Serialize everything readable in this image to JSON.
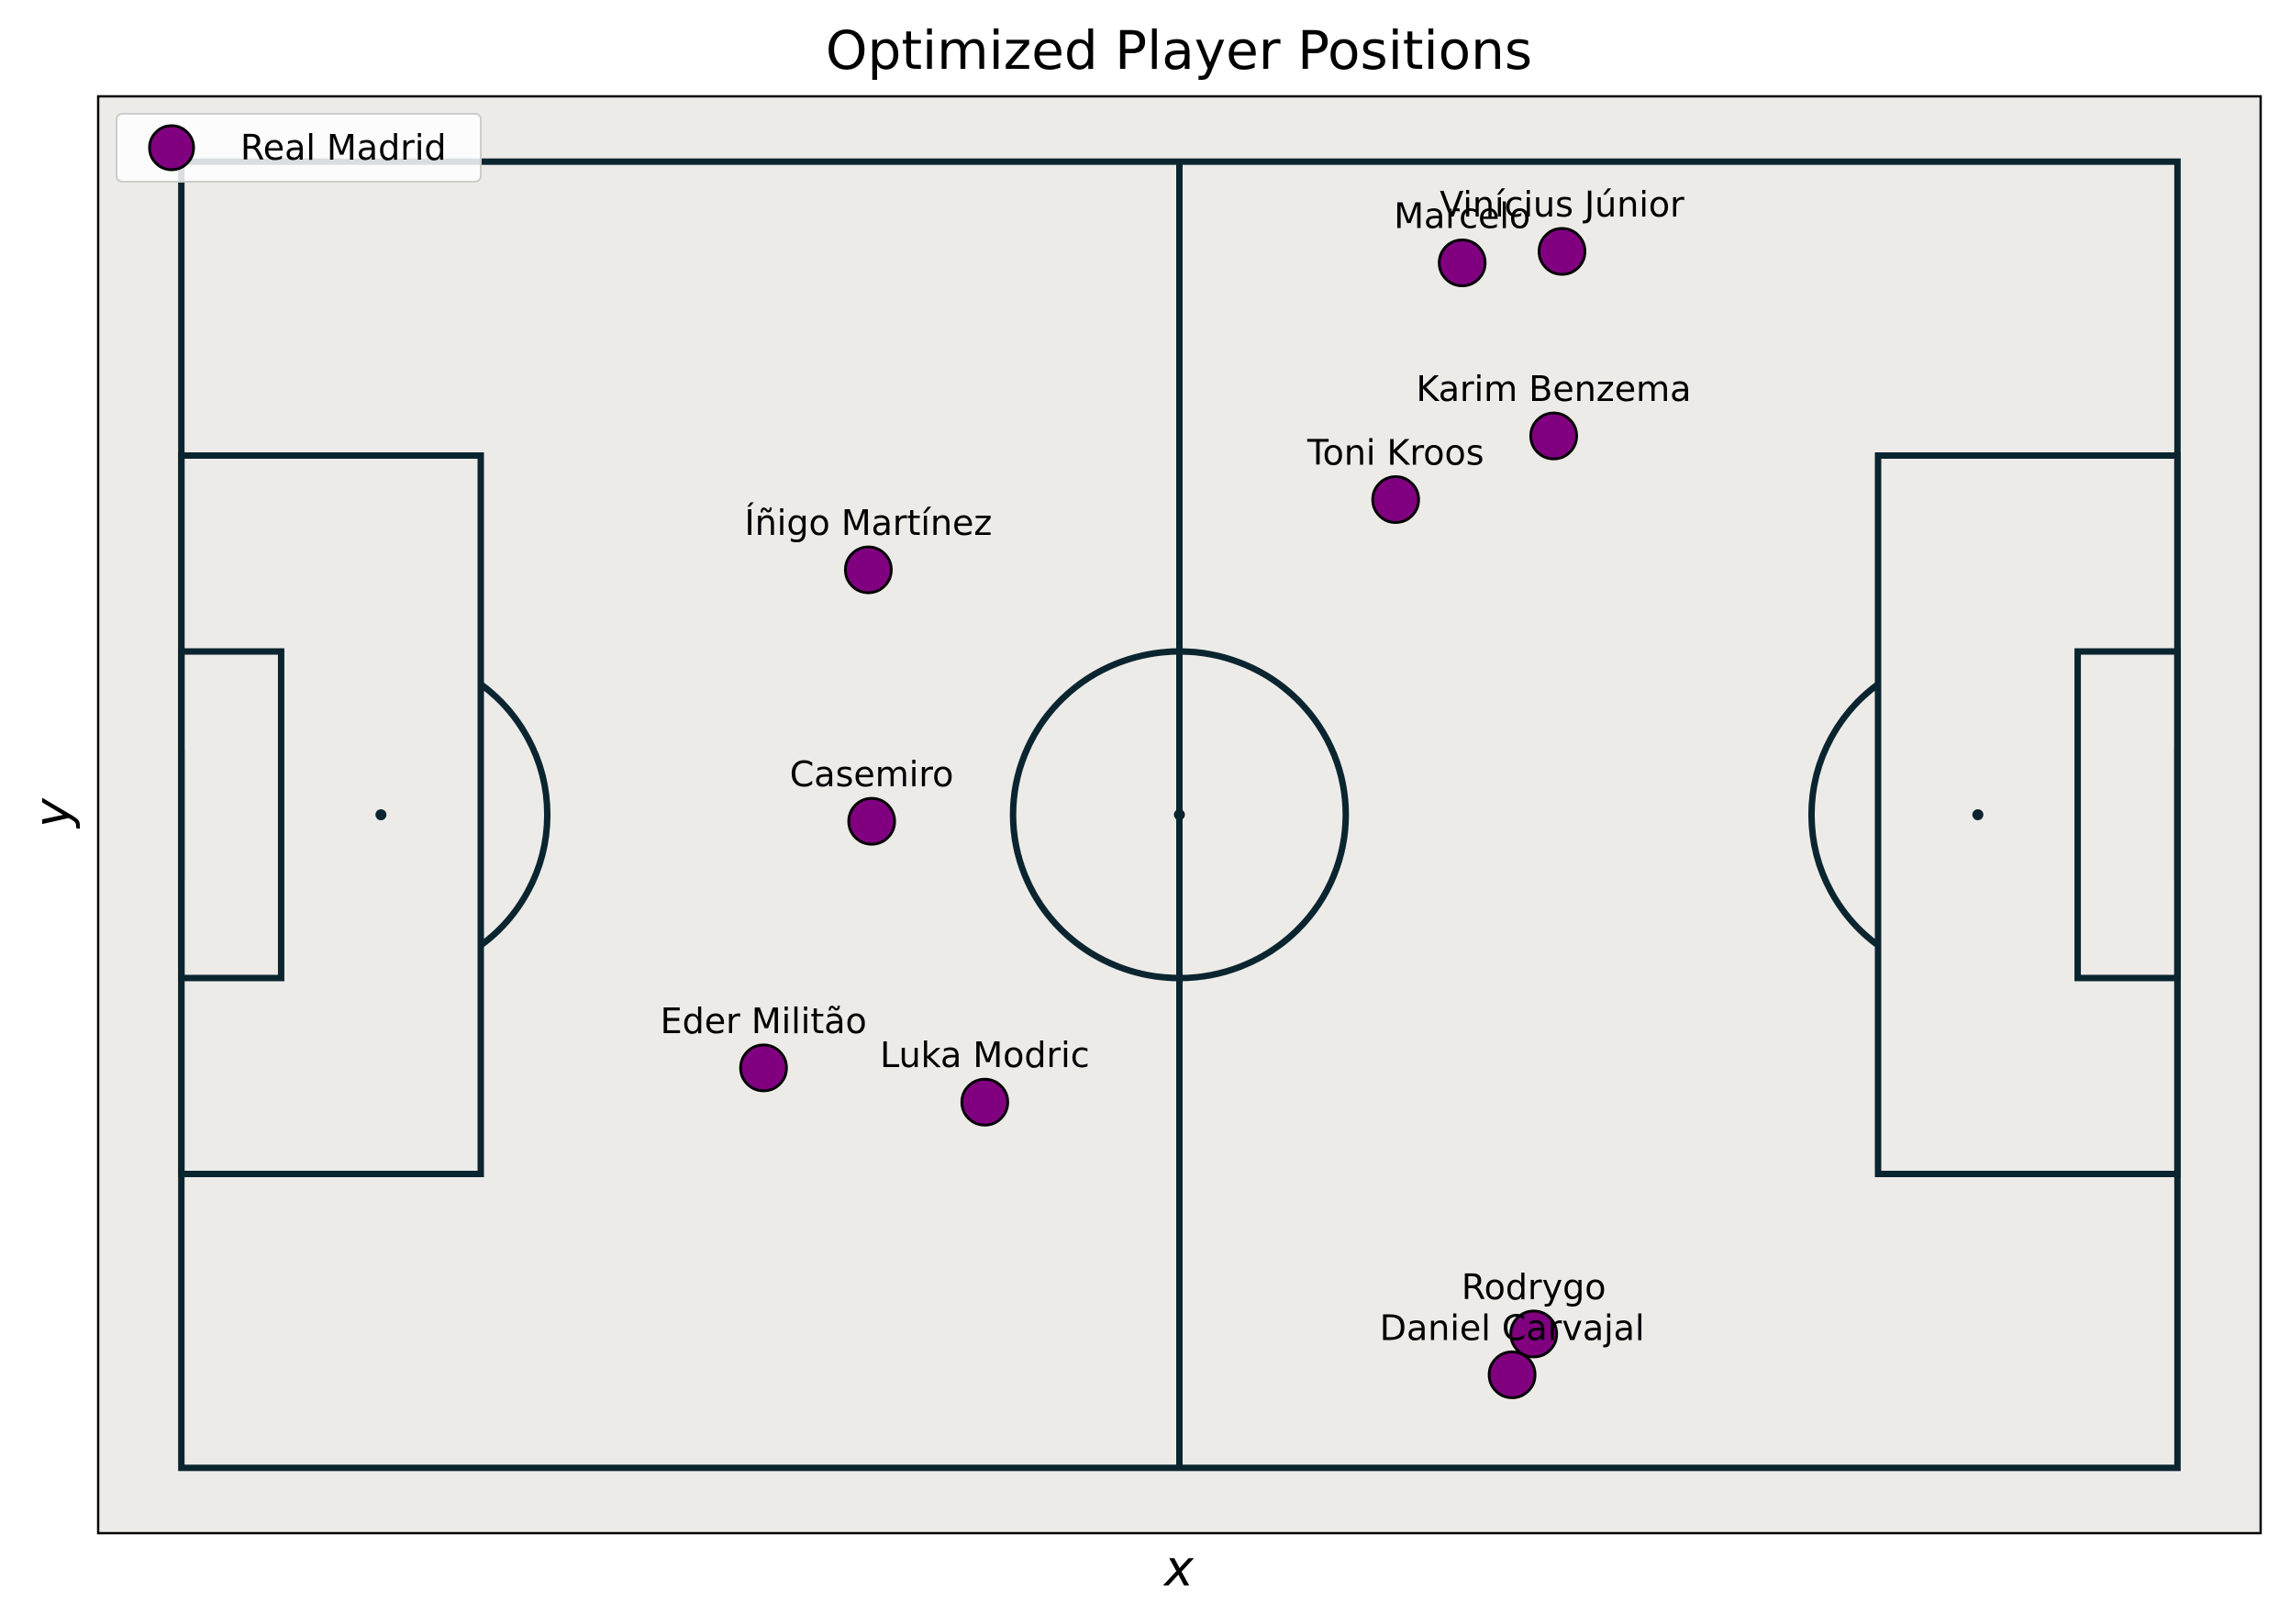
{
  "chart_data": {
    "type": "scatter",
    "title": "Optimized Player Positions",
    "xlabel": "x",
    "ylabel": "y",
    "xlim": [
      -5,
      125
    ],
    "ylim": [
      -4,
      84
    ],
    "grid": false,
    "legend_placement": "top-left",
    "pitch": {
      "length": 120,
      "width": 80,
      "background": "#edebe8",
      "line_color": "#0b2530"
    },
    "series": [
      {
        "name": "Real Madrid",
        "color": "#800080",
        "edge_color": "#000000",
        "points": [
          {
            "label": "Vinícius Júnior",
            "x": 83.0,
            "y": 74.5
          },
          {
            "label": "Marcelo",
            "x": 77.0,
            "y": 73.8
          },
          {
            "label": "Karim Benzema",
            "x": 82.5,
            "y": 63.2
          },
          {
            "label": "Toni Kroos",
            "x": 73.0,
            "y": 59.3
          },
          {
            "label": "Íñigo Martínez",
            "x": 41.3,
            "y": 55.0
          },
          {
            "label": "Casemiro",
            "x": 41.5,
            "y": 39.6
          },
          {
            "label": "Eder Militão",
            "x": 35.0,
            "y": 24.5
          },
          {
            "label": "Luka Modric",
            "x": 48.3,
            "y": 22.4
          },
          {
            "label": "Rodrygo",
            "x": 81.3,
            "y": 8.2
          },
          {
            "label": "Daniel Carvajal",
            "x": 80.0,
            "y": 5.7
          }
        ]
      }
    ]
  }
}
